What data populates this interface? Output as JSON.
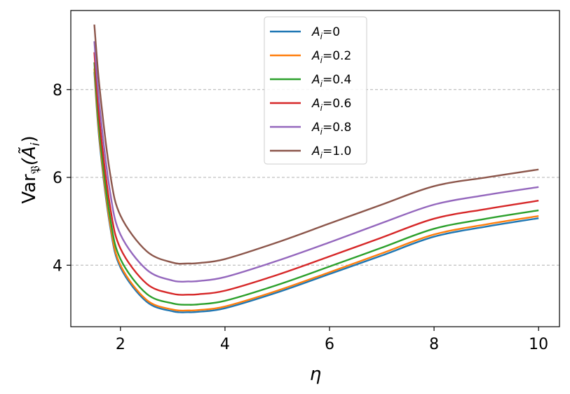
{
  "chart_data": {
    "type": "line",
    "xlabel": "η",
    "ylabel_main": "Var",
    "ylabel_sub": "𝔓",
    "ylabel_arg": "(Ã",
    "ylabel_arg_sub": "i",
    "ylabel_close": ")",
    "xlim": [
      1.05,
      10.4
    ],
    "ylim": [
      2.6,
      9.8
    ],
    "xticks": [
      2,
      4,
      6,
      8,
      10
    ],
    "yticks": [
      4,
      6,
      8
    ],
    "grid": "horizontal-dashed",
    "legend_position": "top-center",
    "x": [
      1.5,
      1.6,
      1.8,
      2.0,
      2.5,
      3.0,
      3.3,
      3.5,
      4.0,
      5.0,
      6.0,
      7.0,
      8.0,
      9.0,
      10.0
    ],
    "series": [
      {
        "legend_symbol": "A",
        "legend_sub": "i",
        "legend_value": "=0",
        "color": "#1f77b4",
        "values": [
          8.4,
          6.8,
          4.9,
          3.95,
          3.17,
          2.95,
          2.93,
          2.94,
          3.02,
          3.38,
          3.8,
          4.22,
          4.65,
          4.88,
          5.07
        ]
      },
      {
        "legend_symbol": "A",
        "legend_sub": "i",
        "legend_value": "=0.2",
        "color": "#ff7f0e",
        "values": [
          8.48,
          6.88,
          4.96,
          4.0,
          3.21,
          2.99,
          2.97,
          2.98,
          3.06,
          3.42,
          3.84,
          4.27,
          4.7,
          4.93,
          5.12
        ]
      },
      {
        "legend_symbol": "A",
        "legend_sub": "i",
        "legend_value": "=0.4",
        "color": "#2ca02c",
        "values": [
          8.62,
          7.02,
          5.1,
          4.14,
          3.35,
          3.13,
          3.1,
          3.11,
          3.19,
          3.55,
          3.97,
          4.4,
          4.83,
          5.06,
          5.25
        ]
      },
      {
        "legend_symbol": "A",
        "legend_sub": "i",
        "legend_value": "=0.6",
        "color": "#d62728",
        "values": [
          8.85,
          7.28,
          5.35,
          4.38,
          3.58,
          3.35,
          3.33,
          3.34,
          3.42,
          3.78,
          4.2,
          4.63,
          5.06,
          5.28,
          5.47
        ]
      },
      {
        "legend_symbol": "A",
        "legend_sub": "i",
        "legend_value": "=0.8",
        "color": "#9467bd",
        "values": [
          9.1,
          7.62,
          5.68,
          4.7,
          3.9,
          3.65,
          3.63,
          3.64,
          3.73,
          4.1,
          4.52,
          4.96,
          5.38,
          5.6,
          5.78
        ]
      },
      {
        "legend_symbol": "A",
        "legend_sub": "i",
        "legend_value": "=1.0",
        "color": "#8c564b",
        "values": [
          9.48,
          8.05,
          6.1,
          5.13,
          4.32,
          4.06,
          4.04,
          4.05,
          4.14,
          4.52,
          4.95,
          5.38,
          5.8,
          6.0,
          6.18
        ]
      }
    ]
  }
}
